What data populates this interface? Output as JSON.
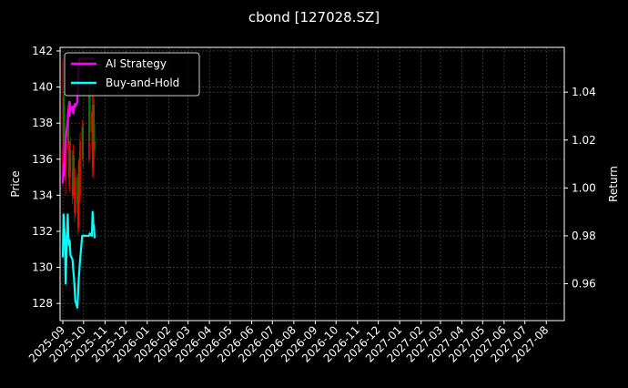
{
  "chart_data": {
    "type": "candlestick+line",
    "title": "cbond [127028.SZ]",
    "ylabel_left": "Price",
    "ylabel_right": "Return",
    "ylim_left": [
      127.05,
      142.2
    ],
    "ylim_right": [
      0.9446,
      1.0587
    ],
    "xlim": [
      "2025-08-28",
      "2027-08-27"
    ],
    "grid": true,
    "legend_position": "upper-left",
    "left_ticks": [
      "128",
      "130",
      "132",
      "134",
      "136",
      "138",
      "140",
      "142"
    ],
    "right_ticks": [
      "0.96",
      "0.98",
      "1.00",
      "1.02",
      "1.04"
    ],
    "x_ticks": [
      "2025-09",
      "2025-10",
      "2025-11",
      "2025-12",
      "2026-01",
      "2026-02",
      "2026-03",
      "2026-04",
      "2026-05",
      "2026-06",
      "2026-07",
      "2026-08",
      "2026-09",
      "2026-10",
      "2026-11",
      "2026-12",
      "2027-01",
      "2027-02",
      "2027-03",
      "2027-04",
      "2027-05",
      "2027-06",
      "2027-07",
      "2027-08"
    ],
    "colors": {
      "background": "#000000",
      "up": "#ff0000",
      "down": "#008000",
      "ai": "#ff00ff",
      "bh": "#00ffff",
      "grid": "#555555"
    },
    "dates": [
      "2025-09-01",
      "2025-09-02",
      "2025-09-03",
      "2025-09-04",
      "2025-09-05",
      "2025-09-08",
      "2025-09-09",
      "2025-09-10",
      "2025-09-11",
      "2025-09-12",
      "2025-09-15",
      "2025-09-16",
      "2025-09-17",
      "2025-09-18",
      "2025-09-19",
      "2025-09-22",
      "2025-09-23",
      "2025-09-24",
      "2025-09-25",
      "2025-09-26",
      "2025-09-29",
      "2025-09-30",
      "2025-10-09",
      "2025-10-10",
      "2025-10-13",
      "2025-10-14",
      "2025-10-15",
      "2025-10-16",
      "2025-10-17"
    ],
    "ohlc": [
      [
        135.0,
        141.5,
        134.5,
        136.5
      ],
      [
        136.5,
        139.5,
        135.5,
        139.0
      ],
      [
        139.0,
        139.8,
        136.0,
        137.0
      ],
      [
        137.0,
        138.5,
        134.8,
        135.5
      ],
      [
        135.5,
        137.5,
        134.0,
        137.2
      ],
      [
        137.2,
        139.0,
        136.5,
        138.5
      ],
      [
        138.5,
        139.2,
        136.8,
        137.0
      ],
      [
        137.0,
        138.0,
        134.5,
        135.0
      ],
      [
        135.0,
        137.0,
        134.2,
        136.5
      ],
      [
        136.5,
        137.2,
        135.0,
        135.4
      ],
      [
        135.4,
        136.5,
        133.5,
        134.0
      ],
      [
        134.0,
        136.8,
        133.8,
        136.2
      ],
      [
        136.2,
        136.5,
        134.0,
        134.5
      ],
      [
        134.5,
        135.0,
        132.5,
        133.0
      ],
      [
        133.0,
        135.5,
        132.8,
        135.0
      ],
      [
        135.0,
        135.2,
        133.0,
        133.5
      ],
      [
        133.5,
        134.0,
        131.8,
        132.2
      ],
      [
        132.2,
        136.0,
        132.0,
        135.8
      ],
      [
        135.8,
        136.5,
        133.5,
        134.0
      ],
      [
        134.0,
        137.5,
        133.6,
        137.0
      ],
      [
        137.0,
        138.2,
        136.0,
        137.8
      ],
      [
        137.8,
        138.0,
        135.5,
        136.0
      ],
      [
        136.0,
        140.0,
        135.8,
        139.5
      ],
      [
        139.5,
        140.5,
        137.0,
        137.5
      ],
      [
        137.5,
        139.0,
        136.5,
        138.6
      ],
      [
        138.6,
        139.8,
        135.0,
        135.5
      ],
      [
        135.5,
        139.5,
        135.0,
        139.0
      ],
      [
        139.0,
        139.3,
        136.5,
        137.0
      ],
      [
        137.0,
        138.0,
        136.0,
        136.5
      ]
    ],
    "series": [
      {
        "name": "AI Strategy",
        "values": [
          1.002,
          1.01,
          1.005,
          1.015,
          1.021,
          1.028,
          1.033,
          1.03,
          1.036,
          1.032,
          1.034,
          1.031,
          1.033,
          1.035,
          1.034,
          1.036,
          1.045,
          1.052,
          1.054,
          1.054,
          1.054,
          1.054,
          1.054,
          1.054,
          1.054,
          1.054,
          1.054,
          1.054,
          1.054
        ]
      },
      {
        "name": "Buy-and-Hold",
        "values": [
          0.971,
          0.989,
          0.984,
          0.98,
          0.96,
          0.989,
          0.98,
          0.976,
          0.978,
          0.972,
          0.97,
          0.966,
          0.963,
          0.958,
          0.953,
          0.95,
          0.956,
          0.962,
          0.966,
          0.97,
          0.98,
          0.98,
          0.98,
          0.981,
          0.98,
          0.99,
          0.985,
          0.984,
          0.979
        ]
      }
    ]
  }
}
